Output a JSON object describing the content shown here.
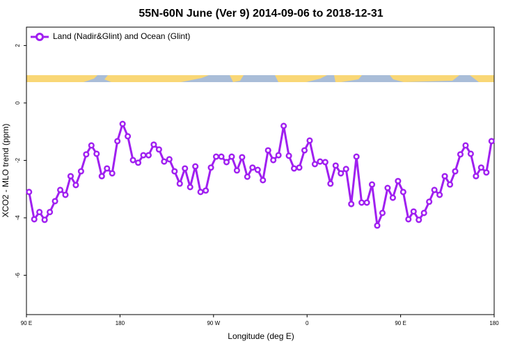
{
  "chart_data": {
    "type": "line",
    "title": "55N-60N June (Ver 9)   2014-09-06 to 2018-12-31",
    "x_label": "Longitude (deg E)",
    "y_label": "XCO2 - MLO trend (ppm)",
    "xlim": [
      90,
      540
    ],
    "ylim": [
      -7.37,
      2.64
    ],
    "xticks": [
      {
        "value": 90,
        "label": "90 E"
      },
      180,
      {
        "value": 270,
        "label": "90 W"
      },
      {
        "value": 360,
        "label": "0"
      },
      {
        "value": 450,
        "label": "90 E"
      },
      {
        "value": 540,
        "label": "180"
      }
    ],
    "yticks": [
      -6,
      -4,
      -2,
      0,
      2
    ],
    "legend": "top-left",
    "grid": false,
    "x": [
      92.5,
      97.5,
      102.5,
      107.5,
      112.5,
      117.5,
      122.5,
      127.5,
      132.5,
      137.5,
      142.5,
      147.5,
      152.5,
      157.5,
      162.5,
      167.5,
      172.5,
      177.5,
      182.5,
      187.5,
      192.5,
      197.5,
      202.5,
      207.5,
      212.5,
      217.5,
      222.5,
      227.5,
      232.5,
      237.5,
      242.5,
      247.5,
      252.5,
      257.5,
      262.5,
      267.5,
      272.5,
      277.5,
      282.5,
      287.5,
      292.5,
      297.5,
      302.5,
      307.5,
      312.5,
      317.5,
      322.5,
      327.5,
      332.5,
      337.5,
      342.5,
      347.5,
      352.5,
      357.5,
      362.5,
      367.5,
      372.5,
      377.5,
      382.5,
      387.5,
      392.5,
      397.5,
      402.5,
      407.5,
      412.5,
      417.5,
      422.5,
      427.5,
      432.5,
      437.5,
      442.5,
      447.5,
      452.5,
      457.5,
      462.5,
      467.5,
      472.5,
      477.5,
      482.5,
      487.5,
      492.5,
      497.5,
      502.5,
      507.5,
      512.5,
      517.5,
      522.5,
      527.5,
      532.5,
      537.5
    ],
    "series": [
      {
        "name": "Land (Nadir&Glint) and Ocean (Glint)",
        "color": "#a020f0",
        "values": [
          -3.1,
          -4.05,
          -3.8,
          -4.07,
          -3.8,
          -3.42,
          -3.03,
          -3.2,
          -2.55,
          -2.86,
          -2.38,
          -1.79,
          -1.48,
          -1.77,
          -2.55,
          -2.28,
          -2.45,
          -1.33,
          -0.73,
          -1.16,
          -1.99,
          -2.08,
          -1.82,
          -1.82,
          -1.45,
          -1.62,
          -2.04,
          -1.96,
          -2.38,
          -2.81,
          -2.28,
          -2.93,
          -2.21,
          -3.1,
          -3.05,
          -2.25,
          -1.87,
          -1.87,
          -2.06,
          -1.87,
          -2.35,
          -1.89,
          -2.57,
          -2.25,
          -2.33,
          -2.69,
          -1.65,
          -1.99,
          -1.82,
          -0.8,
          -1.84,
          -2.28,
          -2.25,
          -1.65,
          -1.31,
          -2.13,
          -2.04,
          -2.06,
          -2.81,
          -2.18,
          -2.45,
          -2.3,
          -3.52,
          -1.87,
          -3.47,
          -3.47,
          -2.84,
          -4.27,
          -3.83,
          -2.96,
          -3.3,
          -2.72,
          -3.1,
          -4.05,
          -3.78,
          -4.07,
          -3.83,
          -3.44,
          -3.03,
          -3.2,
          -2.55,
          -2.84,
          -2.38,
          -1.79,
          -1.48,
          -1.77,
          -2.55,
          -2.25,
          -2.42,
          -1.33
        ]
      }
    ]
  }
}
